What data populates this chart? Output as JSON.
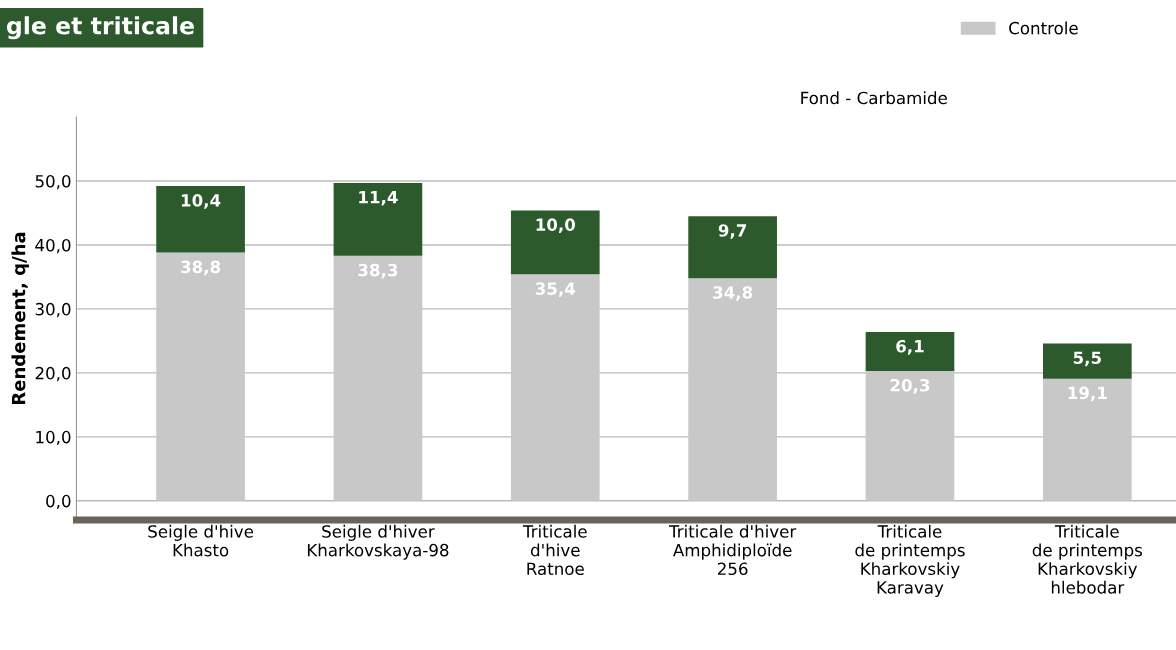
{
  "chart_data": {
    "type": "bar",
    "title": "gle et triticale",
    "ylabel": "Rendement, q/ha",
    "categories": [
      "Seigle d'hive\nKhasto",
      "Seigle d'hiver\nKharkovskaya-98",
      "Triticale\nd'hive\nRatnoe",
      "Triticale d'hiver\nAmphidiploïde\n256",
      "Triticale\nde printemps\nKharkovskiy\nKaravay",
      "Triticale\nde printemps\nKharkovskiy\nhlebodar"
    ],
    "stacked": true,
    "series": [
      {
        "name": "Controle",
        "color": "#c8c8c8",
        "values": [
          38.8,
          38.3,
          35.4,
          34.8,
          20.3,
          19.1
        ],
        "value_labels": [
          "38,8",
          "38,3",
          "35,4",
          "34,8",
          "20,3",
          "19,1"
        ]
      },
      {
        "color": "#2d5a2d",
        "values": [
          10.4,
          11.4,
          10.0,
          9.7,
          6.1,
          5.5
        ],
        "value_labels": [
          "10,4",
          "11,4",
          "10,0",
          "9,7",
          "6,1",
          "5,5"
        ]
      }
    ],
    "ylim": [
      -3,
      60
    ],
    "yticks": [
      {
        "value": 0,
        "label": "0,0"
      },
      {
        "value": 10,
        "label": "10,0"
      },
      {
        "value": 20,
        "label": "20,0"
      },
      {
        "value": 30,
        "label": "30,0"
      },
      {
        "value": 40,
        "label": "40,0"
      },
      {
        "value": 50,
        "label": "50,0"
      }
    ],
    "grid": "y",
    "legend": "top right",
    "annotations": [
      "Fond - Carbamide"
    ]
  }
}
